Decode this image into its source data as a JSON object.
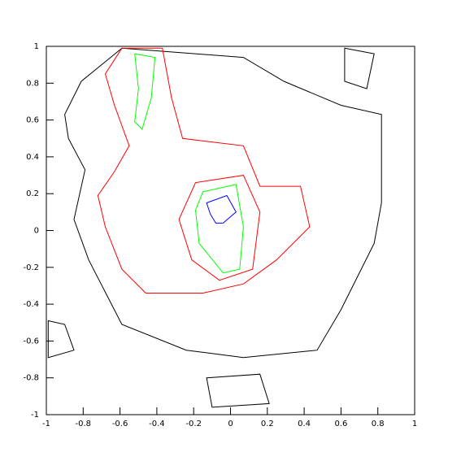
{
  "chart_data": {
    "type": "contour",
    "xlim": [
      -1,
      1
    ],
    "ylim": [
      -1,
      1
    ],
    "xticks": [
      -1,
      -0.8,
      -0.6,
      -0.4,
      -0.2,
      0,
      0.2,
      0.4,
      0.6,
      0.8,
      1
    ],
    "yticks": [
      -1,
      -0.8,
      -0.6,
      -0.4,
      -0.2,
      0,
      0.2,
      0.4,
      0.6,
      0.8,
      1
    ],
    "contours": [
      {
        "color": "#000000",
        "x": [
          -0.9,
          -0.81,
          -0.59,
          0.07,
          0.29,
          0.6,
          0.82,
          0.82,
          0.78,
          0.69,
          0.6,
          0.47,
          0.07,
          -0.24,
          -0.59,
          -0.77,
          -0.85,
          -0.79,
          -0.88
        ],
        "y": [
          0.63,
          0.81,
          0.99,
          0.94,
          0.81,
          0.68,
          0.63,
          0.15,
          -0.07,
          -0.25,
          -0.43,
          -0.65,
          -0.69,
          -0.65,
          -0.51,
          -0.16,
          0.06,
          0.33,
          0.5
        ]
      },
      {
        "color": "#000000",
        "x": [
          -0.13,
          0.16,
          0.21,
          -0.1
        ],
        "y": [
          -0.8,
          -0.78,
          -0.94,
          -0.96
        ]
      },
      {
        "color": "#000000",
        "x": [
          -0.99,
          -0.9,
          -0.85,
          -0.99
        ],
        "y": [
          -0.49,
          -0.51,
          -0.65,
          -0.69
        ]
      },
      {
        "color": "#000000",
        "x": [
          0.62,
          0.78,
          0.74,
          0.62
        ],
        "y": [
          0.99,
          0.96,
          0.77,
          0.81
        ]
      },
      {
        "color": "#ff0000",
        "x": [
          -0.59,
          -0.37,
          -0.32,
          -0.26,
          0.07,
          0.16,
          0.38,
          0.43,
          0.25,
          0.07,
          -0.15,
          -0.46,
          -0.59,
          -0.68,
          -0.72,
          -0.63,
          -0.55,
          -0.63,
          -0.68
        ],
        "y": [
          0.99,
          0.99,
          0.72,
          0.5,
          0.46,
          0.24,
          0.24,
          0.02,
          -0.16,
          -0.29,
          -0.34,
          -0.34,
          -0.21,
          0.02,
          0.19,
          0.32,
          0.46,
          0.68,
          0.85
        ]
      },
      {
        "color": "#ff0000",
        "x": [
          -0.19,
          0.07,
          0.16,
          0.12,
          -0.06,
          -0.21,
          -0.28
        ],
        "y": [
          0.26,
          0.3,
          0.1,
          -0.21,
          -0.27,
          -0.16,
          0.06
        ]
      },
      {
        "color": "#00ff00",
        "x": [
          -0.15,
          0.03,
          0.07,
          0.05,
          -0.04,
          -0.17,
          -0.19
        ],
        "y": [
          0.21,
          0.25,
          0.02,
          -0.21,
          -0.23,
          -0.07,
          0.11
        ]
      },
      {
        "color": "#00ff00",
        "x": [
          -0.52,
          -0.41,
          -0.43,
          -0.48,
          -0.52,
          -0.5
        ],
        "y": [
          0.96,
          0.94,
          0.72,
          0.55,
          0.59,
          0.77
        ]
      },
      {
        "color": "#0000ff",
        "x": [
          -0.13,
          -0.02,
          0.03,
          -0.04,
          -0.08,
          -0.11
        ],
        "y": [
          0.15,
          0.19,
          0.1,
          0.04,
          0.04,
          0.09
        ]
      }
    ]
  }
}
